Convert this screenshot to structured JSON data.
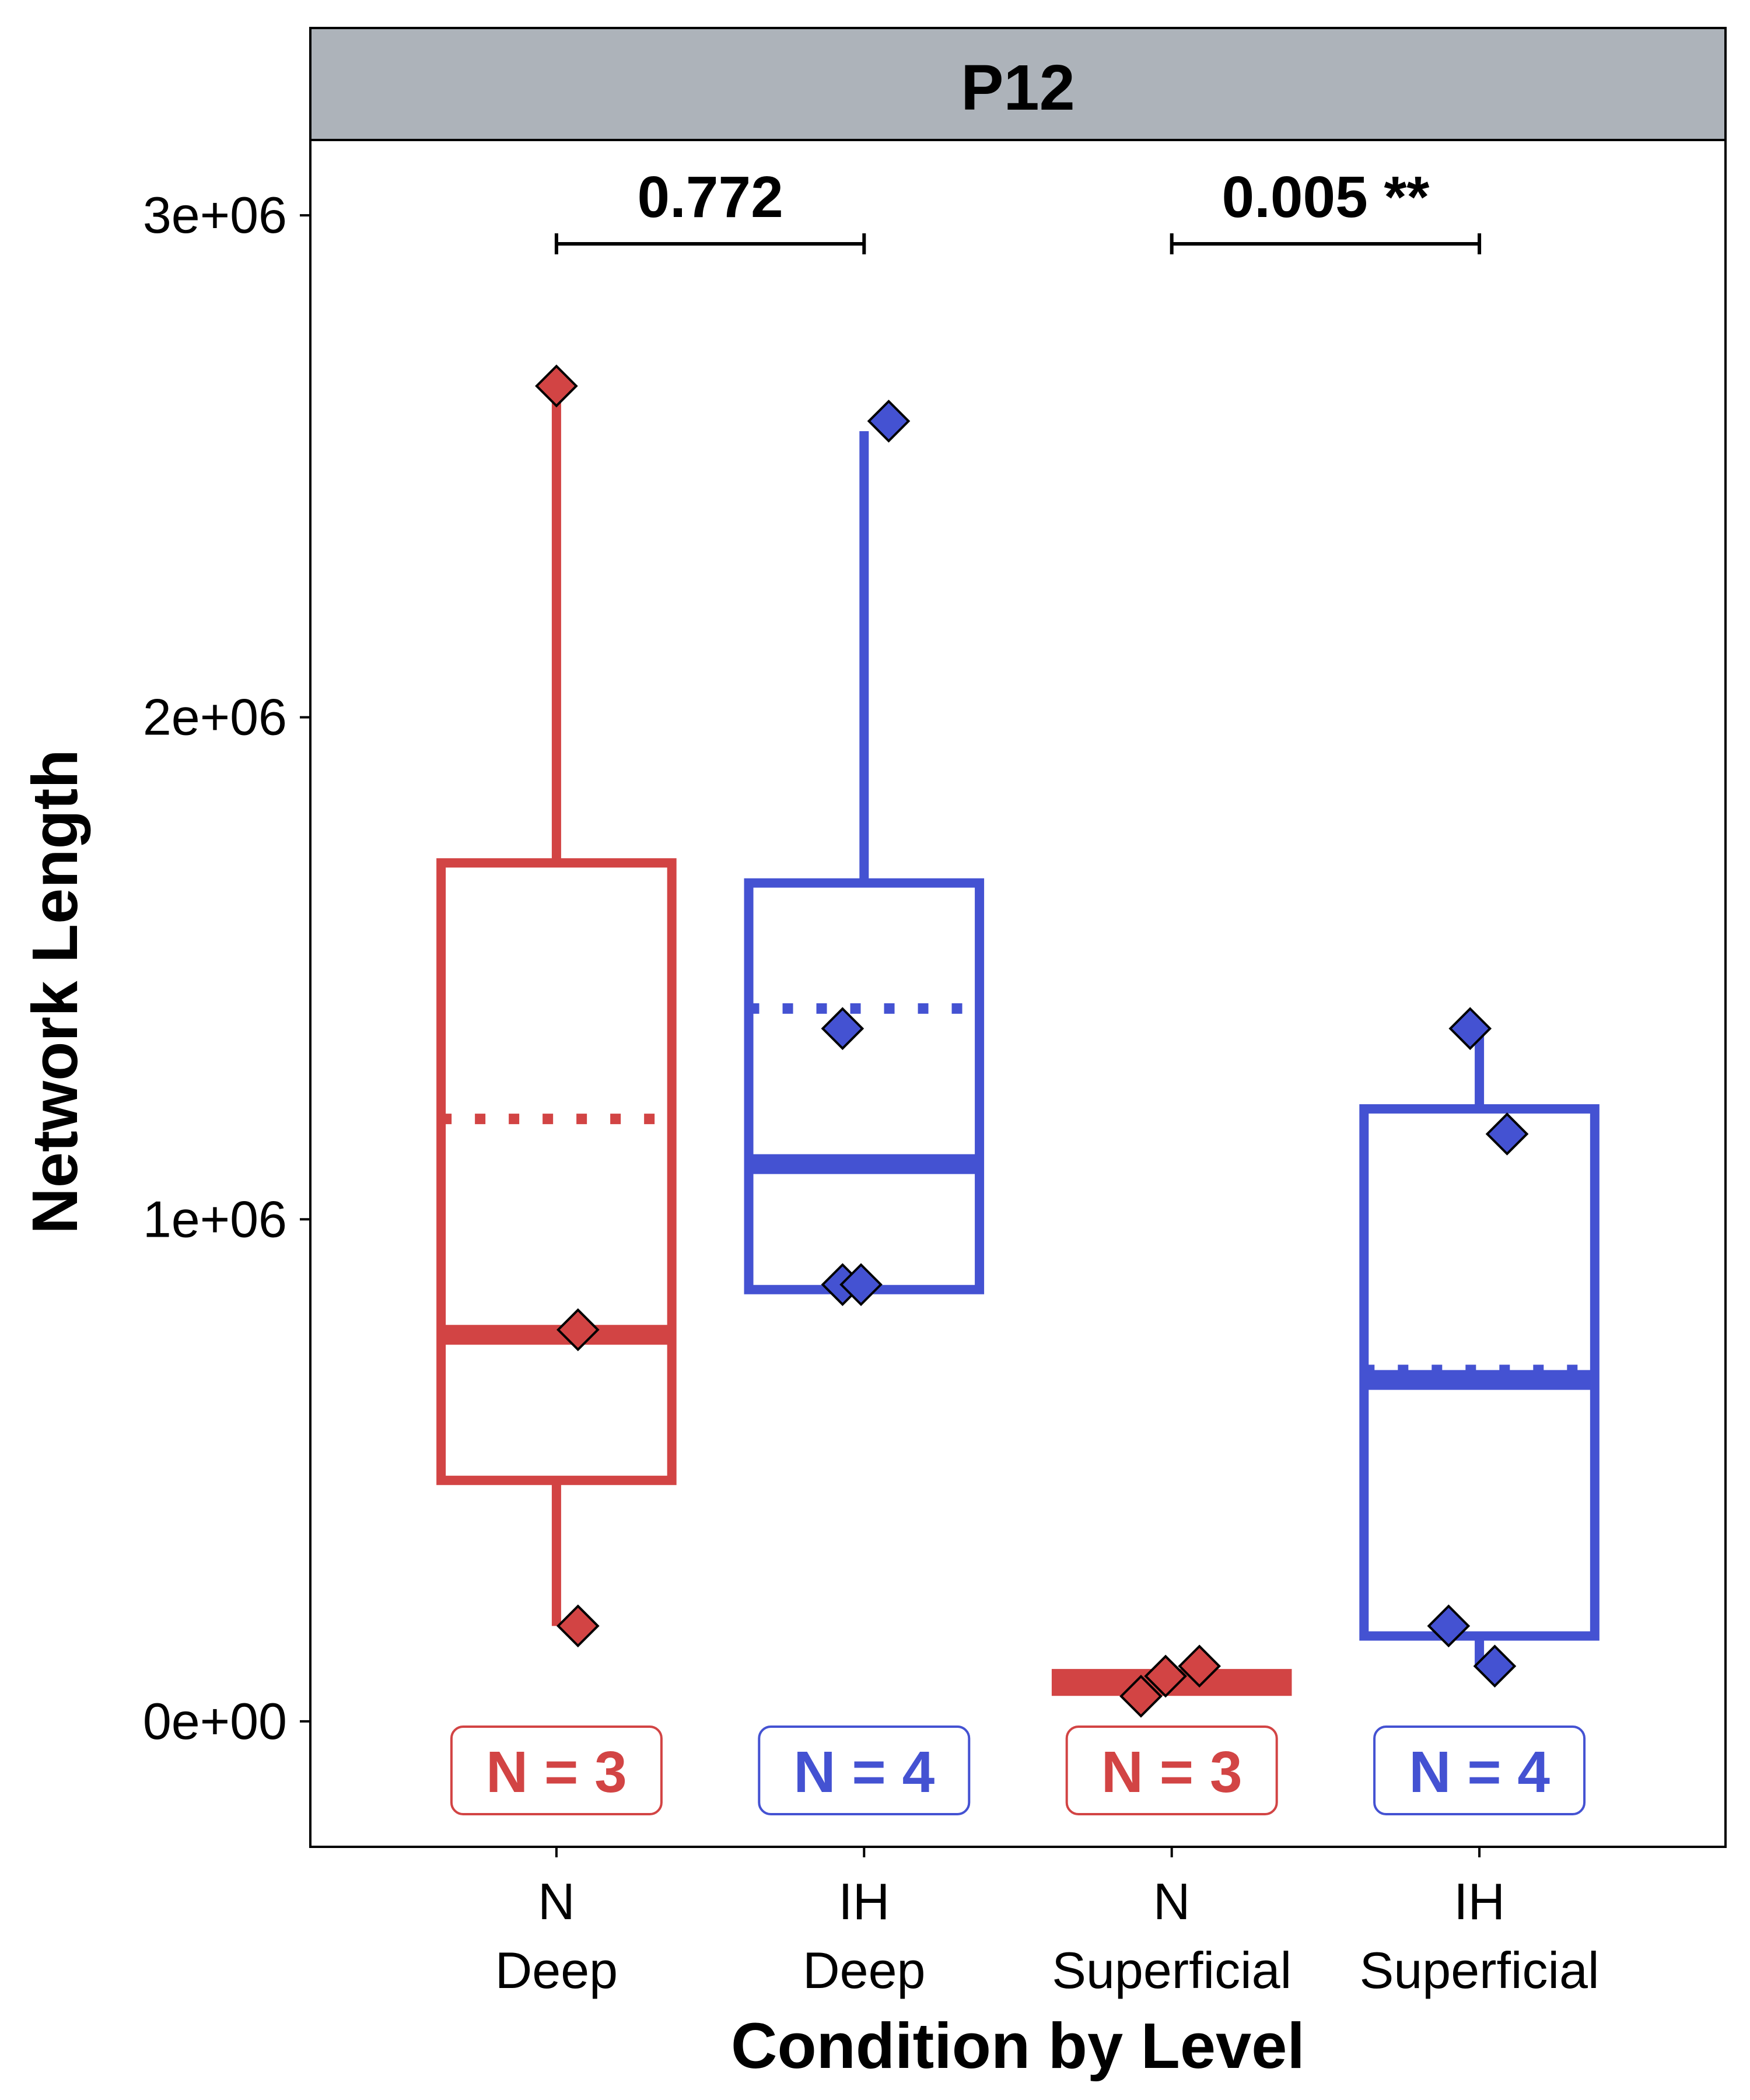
{
  "chart_data": {
    "type": "box",
    "facet": "P12",
    "xlabel": "Condition by Level",
    "ylabel": "Network Length",
    "ylim": [
      -250000,
      3150000
    ],
    "yticks": [
      {
        "value": 0,
        "label": "0e+00"
      },
      {
        "value": 1000000,
        "label": "1e+06"
      },
      {
        "value": 2000000,
        "label": "2e+06"
      },
      {
        "value": 3000000,
        "label": "3e+06"
      }
    ],
    "categories": [
      {
        "line1": "N",
        "line2": "Deep"
      },
      {
        "line1": "IH",
        "line2": "Deep"
      },
      {
        "line1": "N",
        "line2": "Superficial"
      },
      {
        "line1": "IH",
        "line2": "Superficial"
      }
    ],
    "boxes": [
      {
        "color": "#d24444",
        "q1": 480000,
        "median": 770000,
        "q3": 1710000,
        "mean": 1200000,
        "whisker_low": 190000,
        "whisker_high": 2650000,
        "points": [
          [
            0.0,
            2660000
          ],
          [
            0.07,
            780000
          ],
          [
            0.07,
            190000
          ]
        ]
      },
      {
        "color": "#4452d2",
        "q1": 860000,
        "median": 1110000,
        "q3": 1670000,
        "mean": 1420000,
        "whisker_low": 860000,
        "whisker_high": 2570000,
        "points": [
          [
            0.08,
            2590000
          ],
          [
            -0.07,
            1380000
          ],
          [
            -0.07,
            870000
          ],
          [
            -0.01,
            870000
          ]
        ]
      },
      {
        "color": "#d24444",
        "q1": 60000,
        "median": 80000,
        "q3": 95000,
        "mean": 82000,
        "whisker_low": 60000,
        "whisker_high": 100000,
        "points": [
          [
            -0.1,
            50000
          ],
          [
            -0.02,
            90000
          ],
          [
            0.09,
            110000
          ]
        ]
      },
      {
        "color": "#4452d2",
        "q1": 170000,
        "median": 680000,
        "q3": 1220000,
        "mean": 700000,
        "whisker_low": 110000,
        "whisker_high": 1380000,
        "points": [
          [
            -0.03,
            1380000
          ],
          [
            0.09,
            1170000
          ],
          [
            -0.1,
            190000
          ],
          [
            0.05,
            110000
          ]
        ]
      }
    ],
    "counts": [
      "N = 3",
      "N = 4",
      "N = 3",
      "N = 4"
    ],
    "comparisons": [
      {
        "from": 0,
        "to": 1,
        "label": "0.772"
      },
      {
        "from": 2,
        "to": 3,
        "label": "0.005 **"
      }
    ]
  }
}
